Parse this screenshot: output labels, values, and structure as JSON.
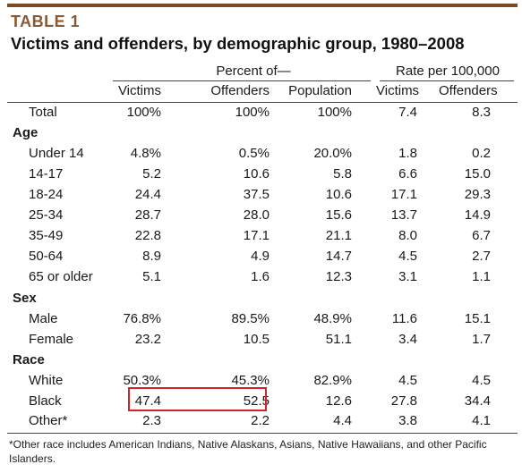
{
  "table_label": "TABLE 1",
  "title": "Victims and offenders, by demographic group, 1980–2008",
  "group_headers": {
    "percent": "Percent of—",
    "rate": "Rate per 100,000"
  },
  "columns": [
    "Victims",
    "Offenders",
    "Population",
    "Victims",
    "Offenders"
  ],
  "rows": {
    "total": {
      "label": "Total",
      "values": [
        "100%",
        "100%",
        "100%",
        "7.4",
        "8.3"
      ]
    },
    "age": {
      "label": "Age"
    },
    "under14": {
      "label": "Under 14",
      "values": [
        "4.8%",
        "0.5%",
        "20.0%",
        "1.8",
        "0.2"
      ]
    },
    "a14_17": {
      "label": "14-17",
      "values": [
        "5.2",
        "10.6",
        "5.8",
        "6.6",
        "15.0"
      ]
    },
    "a18_24": {
      "label": "18-24",
      "values": [
        "24.4",
        "37.5",
        "10.6",
        "17.1",
        "29.3"
      ]
    },
    "a25_34": {
      "label": "25-34",
      "values": [
        "28.7",
        "28.0",
        "15.6",
        "13.7",
        "14.9"
      ]
    },
    "a35_49": {
      "label": "35-49",
      "values": [
        "22.8",
        "17.1",
        "21.1",
        "8.0",
        "6.7"
      ]
    },
    "a50_64": {
      "label": "50-64",
      "values": [
        "8.9",
        "4.9",
        "14.7",
        "4.5",
        "2.7"
      ]
    },
    "a65": {
      "label": "65 or older",
      "values": [
        "5.1",
        "1.6",
        "12.3",
        "3.1",
        "1.1"
      ]
    },
    "sex": {
      "label": "Sex"
    },
    "male": {
      "label": "Male",
      "values": [
        "76.8%",
        "89.5%",
        "48.9%",
        "11.6",
        "15.1"
      ]
    },
    "female": {
      "label": "Female",
      "values": [
        "23.2",
        "10.5",
        "51.1",
        "3.4",
        "1.7"
      ]
    },
    "race": {
      "label": "Race"
    },
    "white": {
      "label": "White",
      "values": [
        "50.3%",
        "45.3%",
        "82.9%",
        "4.5",
        "4.5"
      ]
    },
    "black": {
      "label": "Black",
      "values": [
        "47.4",
        "52.5",
        "12.6",
        "27.8",
        "34.4"
      ]
    },
    "other": {
      "label": "Other*",
      "values": [
        "2.3",
        "2.2",
        "4.4",
        "3.8",
        "4.1"
      ]
    }
  },
  "footnote": "*Other race includes American Indians, Native Alaskans, Asians, Native Hawaiians, and other Pacific Islanders.",
  "colors": {
    "accent": "#7a4a22",
    "highlight": "#d0252b"
  }
}
